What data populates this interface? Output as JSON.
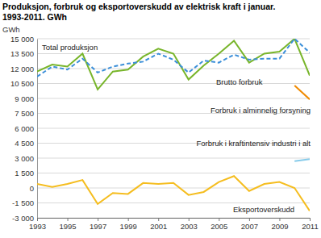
{
  "chart_data": {
    "type": "line",
    "title": "Produksjon, forbruk og eksportoverskudd av elektrisk kraft i januar. 1993-2011. GWh",
    "y_label": "GWh",
    "x": [
      1993,
      1994,
      1995,
      1996,
      1997,
      1998,
      1999,
      2000,
      2001,
      2002,
      2003,
      2004,
      2005,
      2006,
      2007,
      2008,
      2009,
      2010,
      2011
    ],
    "xlim": [
      1993,
      2011
    ],
    "xticks": [
      1993,
      1995,
      1997,
      1999,
      2001,
      2003,
      2005,
      2007,
      2009,
      2011
    ],
    "ylim": [
      -3000,
      15000
    ],
    "yticks": [
      {
        "value": -3000,
        "label": "-3 000"
      },
      {
        "value": -1500,
        "label": "-1 500"
      },
      0,
      {
        "value": 1500,
        "label": "1 500"
      },
      {
        "value": 3000,
        "label": "3 000"
      },
      {
        "value": 4500,
        "label": "4 500"
      },
      {
        "value": 6000,
        "label": "6 000"
      },
      {
        "value": 7500,
        "label": "7 500"
      },
      {
        "value": 9000,
        "label": "9 000"
      },
      {
        "value": 10500,
        "label": "10 500"
      },
      {
        "value": 12000,
        "label": "12 000"
      },
      {
        "value": 13500,
        "label": "13 500"
      },
      {
        "value": 15000,
        "label": "15 000"
      }
    ],
    "grid": true,
    "series": [
      {
        "name": "Total produksjon",
        "color": "#78b52b",
        "line_style": "solid",
        "values": [
          11700,
          12400,
          12200,
          13500,
          9900,
          11700,
          11900,
          13200,
          14000,
          13500,
          10900,
          12300,
          13500,
          14800,
          12600,
          13500,
          13700,
          15000,
          11300
        ]
      },
      {
        "name": "Brutto forbruk",
        "color": "#3b8fd9",
        "line_style": "dashed",
        "values": [
          11200,
          12200,
          11900,
          13000,
          11600,
          12200,
          12500,
          12700,
          13500,
          12900,
          11600,
          12800,
          12600,
          13400,
          12900,
          13000,
          13000,
          15000,
          13600
        ]
      },
      {
        "name": "Forbruk i alminnelig forsyning",
        "color": "#f08a00",
        "line_style": "solid",
        "values": [
          null,
          null,
          null,
          null,
          null,
          null,
          null,
          null,
          null,
          null,
          null,
          null,
          null,
          null,
          null,
          null,
          null,
          10300,
          8900
        ]
      },
      {
        "name": "Forbruk i kraftintensiv industri i alt",
        "color": "#86cbea",
        "line_style": "solid",
        "values": [
          null,
          null,
          null,
          null,
          null,
          null,
          null,
          null,
          null,
          null,
          null,
          null,
          null,
          null,
          null,
          null,
          null,
          2700,
          2900
        ]
      },
      {
        "name": "Eksportoverskudd",
        "color": "#f5bd1f",
        "line_style": "solid",
        "values": [
          400,
          100,
          400,
          800,
          -1600,
          -500,
          -600,
          500,
          400,
          500,
          -700,
          -400,
          600,
          1200,
          -300,
          400,
          600,
          0,
          -2300
        ]
      }
    ]
  }
}
